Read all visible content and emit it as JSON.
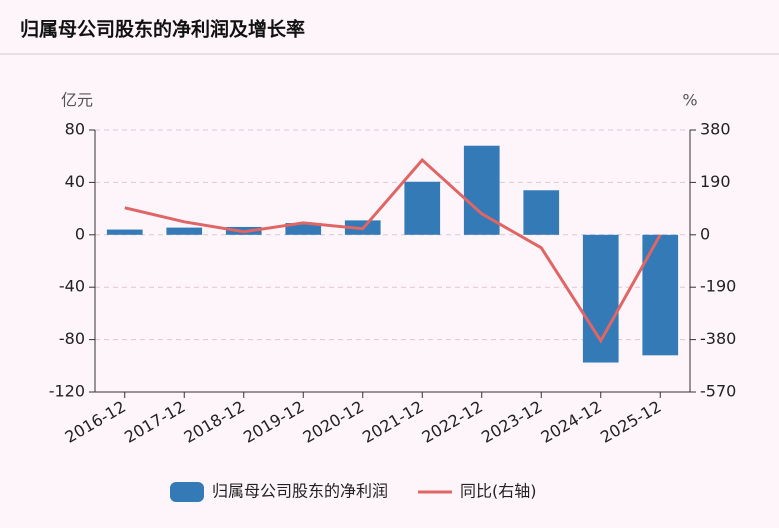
{
  "chart_data": {
    "type": "bar",
    "title": "归属母公司股东的净利润及增长率",
    "y_label": "亿元",
    "y2_label": "%",
    "categories": [
      "2016-12",
      "2017-12",
      "2018-12",
      "2019-12",
      "2020-12",
      "2021-12",
      "2022-12",
      "2023-12",
      "2024-12",
      "2025-12"
    ],
    "series": [
      {
        "name": "归属母公司股东的净利润",
        "type": "bar",
        "color": "#337ab7",
        "values": [
          4,
          5.5,
          6,
          9,
          11,
          40.5,
          68,
          34,
          -97.5,
          -92
        ]
      },
      {
        "name": "同比(右轴)",
        "type": "line",
        "axis": "y2",
        "color": "#e06666",
        "values": [
          98,
          47,
          11,
          43,
          22,
          271,
          76,
          -47,
          -384,
          0
        ]
      }
    ],
    "ylim": [
      -120,
      80
    ],
    "yticks": [
      -120,
      -80,
      -40,
      0,
      40,
      80
    ],
    "y2lim": [
      -570,
      380
    ],
    "y2ticks": [
      -570,
      -380,
      -190,
      0,
      190,
      380
    ],
    "grid": true
  }
}
